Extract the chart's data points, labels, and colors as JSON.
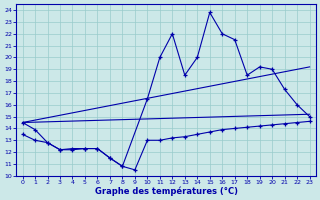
{
  "xlabel": "Graphe des températures (°C)",
  "bg_color": "#cce8e8",
  "grid_color": "#99cccc",
  "line_color": "#0000aa",
  "xlim_min": -0.5,
  "xlim_max": 23.5,
  "ylim_min": 10,
  "ylim_max": 24.5,
  "xticks": [
    0,
    1,
    2,
    3,
    4,
    5,
    6,
    7,
    8,
    9,
    10,
    11,
    12,
    13,
    14,
    15,
    16,
    17,
    18,
    19,
    20,
    21,
    22,
    23
  ],
  "yticks": [
    10,
    11,
    12,
    13,
    14,
    15,
    16,
    17,
    18,
    19,
    20,
    21,
    22,
    23,
    24
  ],
  "curve_main_x": [
    0,
    1,
    2,
    3,
    4,
    5,
    6,
    7,
    8,
    10,
    11,
    12,
    13,
    14,
    15,
    16,
    17,
    18,
    19,
    20,
    21,
    22,
    23
  ],
  "curve_main_y": [
    14.5,
    13.9,
    12.8,
    12.2,
    12.3,
    12.3,
    12.3,
    11.5,
    10.8,
    16.5,
    20.0,
    22.0,
    18.5,
    20.0,
    23.8,
    22.0,
    21.5,
    18.5,
    19.2,
    19.0,
    17.3,
    16.0,
    15.0
  ],
  "curve_low_x": [
    0,
    1,
    2,
    3,
    4,
    5,
    6,
    7,
    8,
    9,
    10,
    11,
    12,
    13,
    14,
    15,
    16,
    17,
    18,
    19,
    20,
    21,
    22,
    23
  ],
  "curve_low_y": [
    13.5,
    13.0,
    12.8,
    12.2,
    12.2,
    12.3,
    12.3,
    11.5,
    10.8,
    10.5,
    13.0,
    13.0,
    13.2,
    13.3,
    13.5,
    13.7,
    13.9,
    14.0,
    14.1,
    14.2,
    14.3,
    14.4,
    14.5,
    14.6
  ],
  "trend1_x": [
    0,
    23
  ],
  "trend1_y": [
    14.5,
    19.2
  ],
  "trend2_x": [
    0,
    23
  ],
  "trend2_y": [
    14.5,
    15.2
  ]
}
